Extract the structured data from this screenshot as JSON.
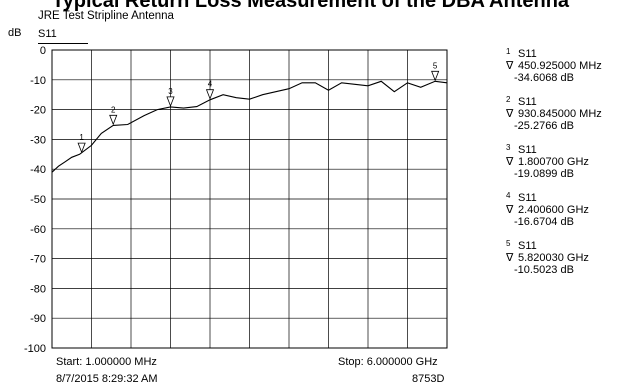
{
  "banner": "Typical Return Loss Measurement of the DBA Antenna",
  "title": "JRE Test Stripline Antenna",
  "y_unit": "dB",
  "trace": "S11",
  "start": "Start: 1.000000 MHz",
  "stop": "Stop: 6.000000 GHz",
  "date": "8/7/2015 8:29:32 AM",
  "instrument": "8753D",
  "markers": [
    {
      "num": "1",
      "trace": "S11",
      "freq": "450.925000 MHz",
      "value": "-34.6068 dB"
    },
    {
      "num": "2",
      "trace": "S11",
      "freq": "930.845000 MHz",
      "value": "-25.2766 dB"
    },
    {
      "num": "3",
      "trace": "S11",
      "freq": "1.800700 GHz",
      "value": "-19.0899 dB"
    },
    {
      "num": "4",
      "trace": "S11",
      "freq": "2.400600 GHz",
      "value": "-16.6704 dB"
    },
    {
      "num": "5",
      "trace": "S11",
      "freq": "5.820030 GHz",
      "value": "-10.5023 dB"
    }
  ],
  "chart_data": {
    "type": "line",
    "title": "JRE Test Stripline Antenna",
    "ylabel": "dB",
    "xlim": [
      0.001,
      6.0
    ],
    "ylim": [
      -100,
      0
    ],
    "y_ticks": [
      "0",
      "-10",
      "-20",
      "-30",
      "-40",
      "-50",
      "-60",
      "-70",
      "-80",
      "-90",
      "-100"
    ],
    "grid": true,
    "series": [
      {
        "name": "S11",
        "x": [
          0.001,
          0.1,
          0.2,
          0.3,
          0.42,
          0.6,
          0.75,
          0.93,
          1.15,
          1.4,
          1.6,
          1.8,
          2.0,
          2.2,
          2.4,
          2.6,
          2.8,
          3.0,
          3.2,
          3.4,
          3.6,
          3.8,
          4.0,
          4.2,
          4.4,
          4.6,
          4.8,
          5.0,
          5.2,
          5.4,
          5.6,
          5.82,
          6.0
        ],
        "y": [
          -41,
          -39,
          -37.5,
          -36,
          -35,
          -32,
          -28,
          -25.3,
          -25,
          -22,
          -20,
          -19.1,
          -19.5,
          -19,
          -16.7,
          -15,
          -16,
          -16.5,
          -15,
          -14,
          -13,
          -11,
          -11,
          -13.5,
          -11,
          -11.5,
          -12,
          -10.5,
          -14,
          -11,
          -12.5,
          -10.5,
          -11
        ]
      }
    ],
    "markers": [
      {
        "label": "1",
        "x": 0.450925,
        "y": -34.6068
      },
      {
        "label": "2",
        "x": 0.930845,
        "y": -25.2766
      },
      {
        "label": "3",
        "x": 1.8007,
        "y": -19.0899
      },
      {
        "label": "4",
        "x": 2.4006,
        "y": -16.6704
      },
      {
        "label": "5",
        "x": 5.82003,
        "y": -10.5023
      }
    ]
  }
}
